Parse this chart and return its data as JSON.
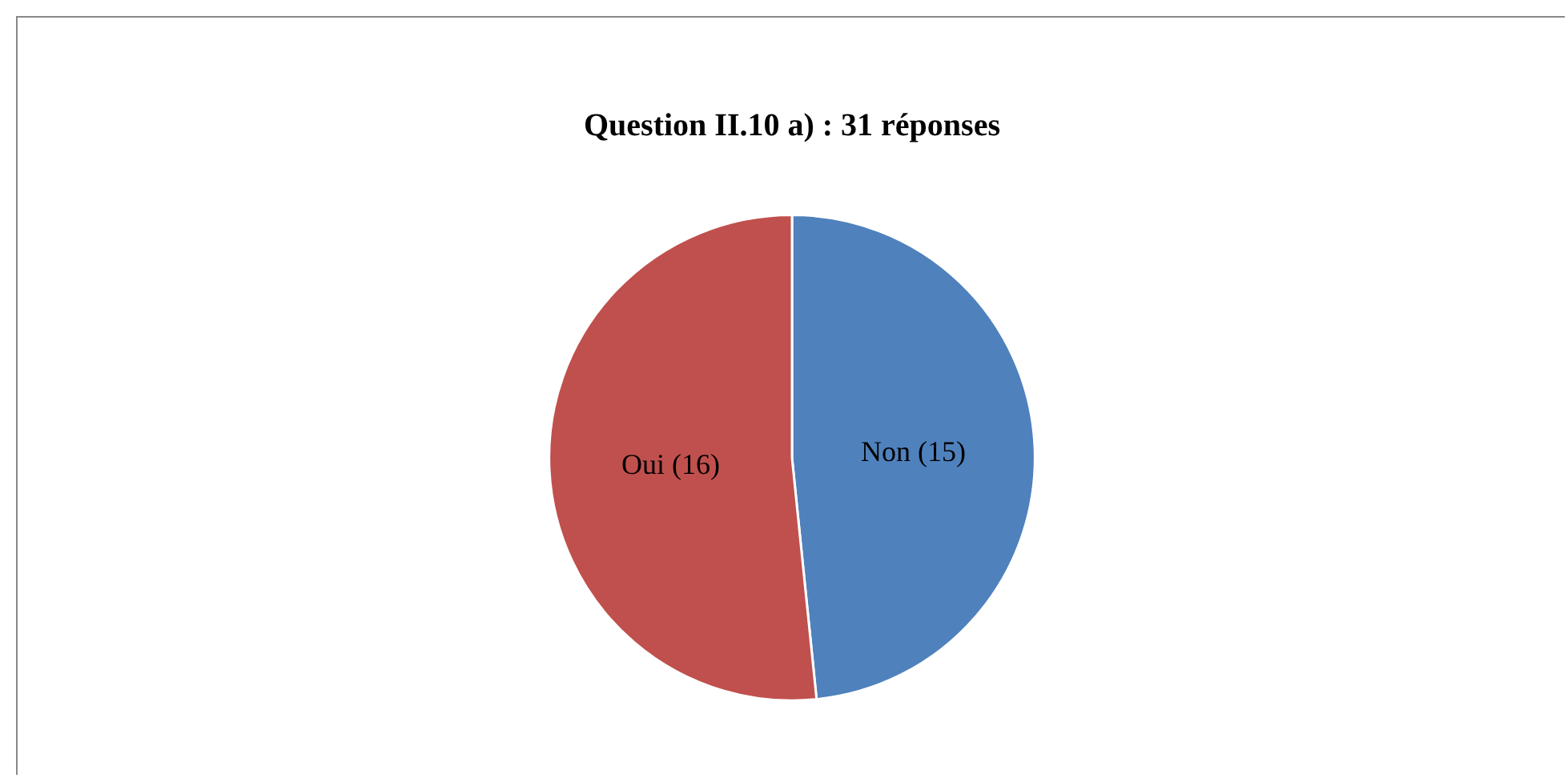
{
  "chart_data": {
    "type": "pie",
    "title": "Question II.10 a) : 31 réponses",
    "categories": [
      "Non (15)",
      "Oui (16)"
    ],
    "values": [
      15,
      16
    ],
    "colors": [
      "#4f81bd",
      "#c0504d"
    ],
    "legend": false
  }
}
